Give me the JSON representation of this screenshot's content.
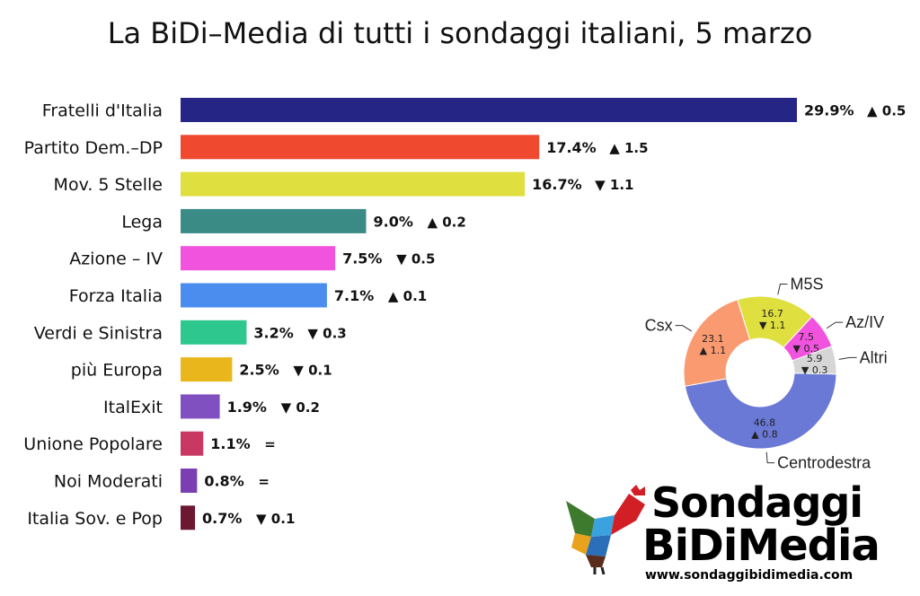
{
  "title": "La BiDi–Media di tutti i sondaggi italiani, 5 marzo",
  "chart_data": [
    {
      "type": "bar",
      "orientation": "horizontal",
      "title": "La BiDi–Media di tutti i sondaggi italiani, 5 marzo",
      "categories": [
        "Fratelli d'Italia",
        "Partito Dem.–DP",
        "Mov. 5 Stelle",
        "Lega",
        "Azione – IV",
        "Forza Italia",
        "Verdi e Sinistra",
        "più Europa",
        "ItalExit",
        "Unione Popolare",
        "Noi Moderati",
        "Italia Sov. e Pop"
      ],
      "values": [
        29.9,
        17.4,
        16.7,
        9.0,
        7.5,
        7.1,
        3.2,
        2.5,
        1.9,
        1.1,
        0.8,
        0.7
      ],
      "value_labels": [
        "29.9%",
        "17.4%",
        "16.7%",
        "9.0%",
        "7.5%",
        "7.1%",
        "3.2%",
        "2.5%",
        "1.9%",
        "1.1%",
        "0.8%",
        "0.7%"
      ],
      "changes": [
        "▲ 0.5",
        "▲ 1.5",
        "▼ 1.1",
        "▲ 0.2",
        "▼ 0.5",
        "▲ 0.1",
        "▼ 0.3",
        "▼ 0.1",
        "▼ 0.2",
        "=",
        "=",
        "▼ 0.1"
      ],
      "colors": [
        "#242585",
        "#ef4a30",
        "#dfdf3f",
        "#3a8a86",
        "#f152de",
        "#4a8def",
        "#2ec78e",
        "#e9b71c",
        "#8050c0",
        "#c83863",
        "#7a3fb0",
        "#6b1830"
      ],
      "xlim": [
        0,
        30
      ],
      "grid": false
    },
    {
      "type": "pie",
      "style": "donut",
      "labels": [
        "Centrodestra",
        "Csx",
        "M5S",
        "Az/IV",
        "Altri"
      ],
      "values": [
        46.8,
        23.1,
        16.7,
        7.5,
        5.9
      ],
      "value_labels": [
        "46.8",
        "23.1",
        "16.7",
        "7.5",
        "5.9"
      ],
      "changes": [
        "▲ 0.8",
        "▲ 1.1",
        "▼ 1.1",
        "▼ 0.5",
        "▼ 0.3"
      ],
      "colors": [
        "#6a78d6",
        "#fa9a70",
        "#dfdf3f",
        "#f152de",
        "#d6d6d6"
      ]
    }
  ],
  "logo": {
    "line1": "Sondaggi",
    "line2": "BiDiMedia",
    "url": "www.sondaggibidimedia.com"
  }
}
